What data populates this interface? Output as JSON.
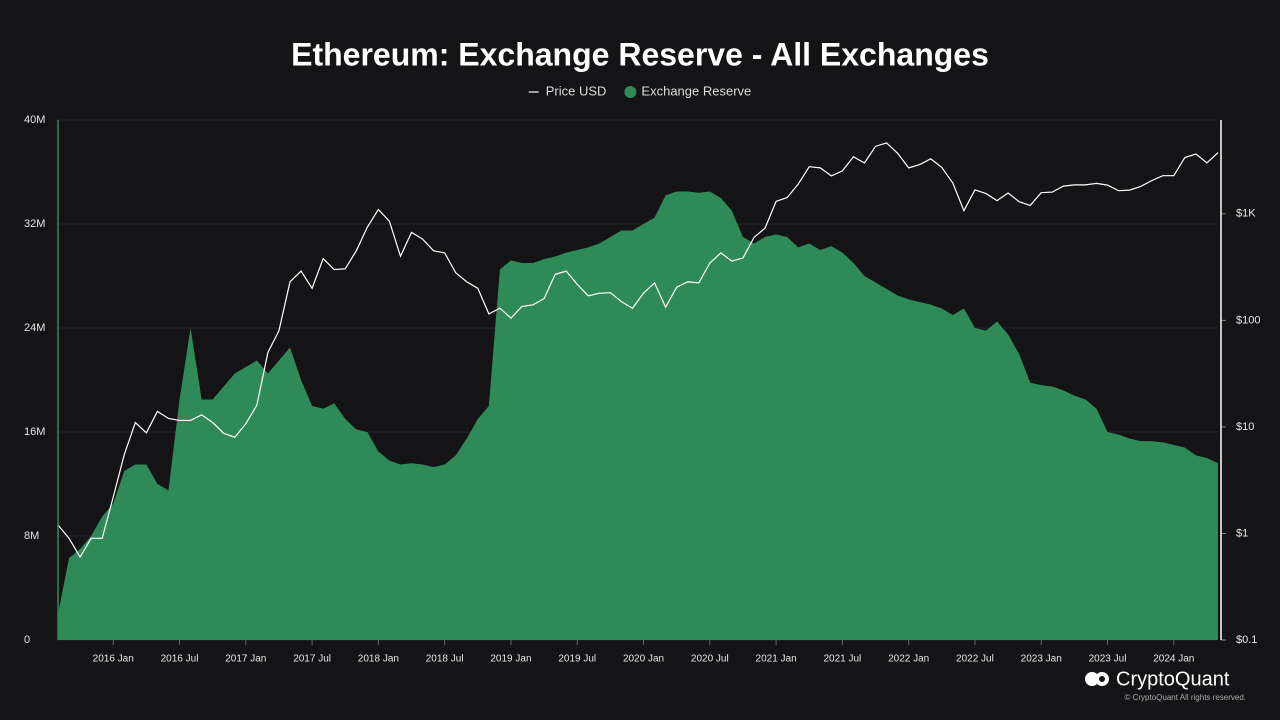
{
  "chart_data": {
    "type": "line",
    "title": "Ethereum: Exchange Reserve - All Exchanges",
    "legend": "top",
    "grid": true,
    "x": [
      "2015-08",
      "2015-09",
      "2015-10",
      "2015-11",
      "2015-12",
      "2016-01",
      "2016-02",
      "2016-03",
      "2016-04",
      "2016-05",
      "2016-06",
      "2016-07",
      "2016-08",
      "2016-09",
      "2016-10",
      "2016-11",
      "2016-12",
      "2017-01",
      "2017-02",
      "2017-03",
      "2017-04",
      "2017-05",
      "2017-06",
      "2017-07",
      "2017-08",
      "2017-09",
      "2017-10",
      "2017-11",
      "2017-12",
      "2018-01",
      "2018-02",
      "2018-03",
      "2018-04",
      "2018-05",
      "2018-06",
      "2018-07",
      "2018-08",
      "2018-09",
      "2018-10",
      "2018-11",
      "2018-12",
      "2019-01",
      "2019-02",
      "2019-03",
      "2019-04",
      "2019-05",
      "2019-06",
      "2019-07",
      "2019-08",
      "2019-09",
      "2019-10",
      "2019-11",
      "2019-12",
      "2020-01",
      "2020-02",
      "2020-03",
      "2020-04",
      "2020-05",
      "2020-06",
      "2020-07",
      "2020-08",
      "2020-09",
      "2020-10",
      "2020-11",
      "2020-12",
      "2021-01",
      "2021-02",
      "2021-03",
      "2021-04",
      "2021-05",
      "2021-06",
      "2021-07",
      "2021-08",
      "2021-09",
      "2021-10",
      "2021-11",
      "2021-12",
      "2022-01",
      "2022-02",
      "2022-03",
      "2022-04",
      "2022-05",
      "2022-06",
      "2022-07",
      "2022-08",
      "2022-09",
      "2022-10",
      "2022-11",
      "2022-12",
      "2023-01",
      "2023-02",
      "2023-03",
      "2023-04",
      "2023-05",
      "2023-06",
      "2023-07",
      "2023-08",
      "2023-09",
      "2023-10",
      "2023-11",
      "2023-12",
      "2024-01",
      "2024-02",
      "2024-03",
      "2024-04",
      "2024-05"
    ],
    "xlim": [
      "2015-08",
      "2024-05"
    ],
    "xticks": [
      {
        "value": "2016-01",
        "label": "2016 Jan"
      },
      {
        "value": "2016-07",
        "label": "2016 Jul"
      },
      {
        "value": "2017-01",
        "label": "2017 Jan"
      },
      {
        "value": "2017-07",
        "label": "2017 Jul"
      },
      {
        "value": "2018-01",
        "label": "2018 Jan"
      },
      {
        "value": "2018-07",
        "label": "2018 Jul"
      },
      {
        "value": "2019-01",
        "label": "2019 Jan"
      },
      {
        "value": "2019-07",
        "label": "2019 Jul"
      },
      {
        "value": "2020-01",
        "label": "2020 Jan"
      },
      {
        "value": "2020-07",
        "label": "2020 Jul"
      },
      {
        "value": "2021-01",
        "label": "2021 Jan"
      },
      {
        "value": "2021-07",
        "label": "2021 Jul"
      },
      {
        "value": "2022-01",
        "label": "2022 Jan"
      },
      {
        "value": "2022-07",
        "label": "2022 Jul"
      },
      {
        "value": "2023-01",
        "label": "2023 Jan"
      },
      {
        "value": "2023-07",
        "label": "2023 Jul"
      },
      {
        "value": "2024-01",
        "label": "2024 Jan"
      }
    ],
    "ylim": [
      0,
      40000000
    ],
    "yticks": [
      0,
      {
        "value": 8000000,
        "label": "8M"
      },
      {
        "value": 16000000,
        "label": "16M"
      },
      {
        "value": 24000000,
        "label": "24M"
      },
      {
        "value": 32000000,
        "label": "32M"
      },
      {
        "value": 40000000,
        "label": "40M"
      }
    ],
    "y2lim": [
      0.1,
      7600
    ],
    "y2log": true,
    "y2ticks": [
      {
        "value": 0.1,
        "label": "$0.1"
      },
      {
        "value": 1,
        "label": "$1"
      },
      {
        "value": 10,
        "label": "$10"
      },
      {
        "value": 100,
        "label": "$100"
      },
      {
        "value": 1000,
        "label": "$1K"
      }
    ],
    "series": [
      {
        "name": "Price USD",
        "color": "#ffffff",
        "axis": "y2",
        "type": "line",
        "values": [
          1.2,
          0.9,
          0.6,
          0.9,
          0.9,
          2.2,
          5.5,
          11,
          8.8,
          14,
          12,
          11.5,
          11.5,
          13,
          11,
          8.7,
          8,
          10.7,
          16,
          50,
          80,
          230,
          290,
          200,
          380,
          300,
          305,
          450,
          750,
          1100,
          850,
          400,
          670,
          580,
          450,
          430,
          280,
          230,
          200,
          115,
          130,
          105,
          135,
          140,
          160,
          270,
          290,
          218,
          170,
          180,
          182,
          150,
          130,
          180,
          225,
          133,
          205,
          230,
          225,
          345,
          430,
          360,
          385,
          600,
          735,
          1310,
          1420,
          1900,
          2770,
          2700,
          2270,
          2530,
          3430,
          3000,
          4300,
          4630,
          3700,
          2700,
          2900,
          3280,
          2730,
          1940,
          1070,
          1680,
          1550,
          1330,
          1570,
          1300,
          1200,
          1580,
          1600,
          1820,
          1870,
          1870,
          1930,
          1860,
          1650,
          1670,
          1810,
          2050,
          2280,
          2280,
          3380,
          3640,
          3010,
          3750
        ]
      },
      {
        "name": "Exchange Reserve",
        "color": "#2e8b57",
        "type": "area",
        "values": [
          2000000,
          6300000,
          7000000,
          8000000,
          9500000,
          10500000,
          13000000,
          13500000,
          13500000,
          12000000,
          11500000,
          18500000,
          24000000,
          18500000,
          18500000,
          19500000,
          20500000,
          21000000,
          21500000,
          20500000,
          21500000,
          22500000,
          20000000,
          18000000,
          17800000,
          18200000,
          17000000,
          16200000,
          16000000,
          14500000,
          13800000,
          13500000,
          13600000,
          13500000,
          13300000,
          13500000,
          14200000,
          15500000,
          17000000,
          18000000,
          28500000,
          29200000,
          29000000,
          29000000,
          29300000,
          29500000,
          29800000,
          30000000,
          30200000,
          30500000,
          31000000,
          31500000,
          31500000,
          32000000,
          32500000,
          34200000,
          34500000,
          34500000,
          34400000,
          34500000,
          34000000,
          33000000,
          31000000,
          30500000,
          31000000,
          31200000,
          31000000,
          30200000,
          30500000,
          30000000,
          30300000,
          29800000,
          29000000,
          28000000,
          27500000,
          27000000,
          26500000,
          26200000,
          26000000,
          25800000,
          25500000,
          25000000,
          25500000,
          24000000,
          23800000,
          24500000,
          23500000,
          22000000,
          19800000,
          19600000,
          19500000,
          19200000,
          18800000,
          18500000,
          17800000,
          16000000,
          15800000,
          15500000,
          15300000,
          15300000,
          15200000,
          15000000,
          14800000,
          14200000,
          14000000,
          13600000
        ]
      }
    ],
    "brand": "CryptoQuant",
    "copyright": "© CryptoQuant All rights reserved."
  }
}
